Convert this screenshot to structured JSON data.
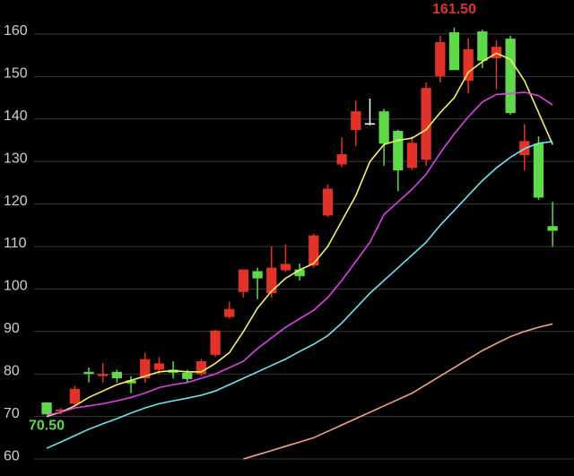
{
  "chart_data": {
    "type": "candlestick",
    "ylim": [
      56,
      168
    ],
    "yticks": [
      60,
      70,
      80,
      90,
      100,
      110,
      120,
      130,
      140,
      150,
      160
    ],
    "grid": true,
    "up_color": "#e2332b",
    "down_color": "#5fd94b",
    "flat_color": "#ffffff",
    "open": [
      73.3,
      71.2,
      73,
      80.5,
      79.5,
      80.5,
      78.5,
      79,
      81,
      81,
      80.3,
      80,
      84.5,
      93.4,
      99.3,
      104.2,
      99,
      104.4,
      104.6,
      105.5,
      117.3,
      129.3,
      137.4,
      139,
      141.8,
      137.2,
      128.5,
      130.4,
      150.1,
      160.4,
      149,
      160.6,
      154.3,
      158.9,
      131.5,
      134.2,
      114.8
    ],
    "high": [
      73.3,
      72,
      77.2,
      81.5,
      82.5,
      81,
      79.5,
      85,
      84,
      83,
      81,
      83.5,
      90.5,
      97,
      104.6,
      105,
      110,
      110.5,
      106,
      113,
      124.6,
      135.7,
      144.3,
      144.8,
      142.4,
      137.5,
      136,
      148.6,
      159.6,
      161.5,
      159,
      161,
      158.5,
      159.6,
      138.8,
      135.9,
      120.5
    ],
    "low": [
      70.5,
      70.5,
      72.5,
      78,
      78,
      78,
      75.5,
      78,
      80,
      79,
      78,
      79.5,
      84,
      93,
      98,
      97.6,
      98,
      104,
      102,
      105,
      117,
      128.7,
      133.6,
      138.5,
      129,
      123,
      128,
      129,
      148.6,
      151.5,
      146,
      152,
      147,
      141,
      127.9,
      121,
      109.9
    ],
    "close": [
      70.5,
      71.6,
      76.5,
      80,
      80,
      79,
      77.8,
      83.5,
      82.5,
      80.3,
      78.8,
      83,
      90.2,
      95.3,
      104.6,
      102.5,
      105,
      105.9,
      103,
      112.6,
      123.6,
      131.7,
      141.8,
      139,
      134.2,
      127.9,
      134.4,
      147.3,
      158.1,
      151.5,
      156.4,
      153.7,
      157,
      141.4,
      134.8,
      121.5,
      113.7
    ],
    "series": [
      {
        "color": "#f4f06a",
        "values": [
          70,
          71,
          72.5,
          74.5,
          76,
          77.5,
          78.5,
          79.5,
          80.5,
          80.8,
          80.5,
          80.5,
          82.5,
          85,
          90,
          95.5,
          99.5,
          102.5,
          104.5,
          106,
          110,
          116,
          122,
          130,
          134,
          135,
          135.5,
          137.5,
          141.5,
          145,
          151,
          153.5,
          155.5,
          154,
          149,
          141.5,
          134
        ]
      },
      {
        "color": "#e040e6",
        "values": [
          70.3,
          71,
          72,
          72.5,
          73,
          73.7,
          74.5,
          75.5,
          76.8,
          77.5,
          78,
          79,
          80,
          81.5,
          83,
          86,
          88.5,
          91,
          93,
          95,
          98,
          102,
          106.5,
          111,
          117.5,
          120.5,
          123.5,
          127,
          132,
          136.5,
          140.5,
          144,
          145.8,
          146,
          146.3,
          145.5,
          143.3
        ]
      },
      {
        "color": "#6fe3f0",
        "values": [
          62.5,
          64,
          65.5,
          67,
          68.3,
          69.5,
          70.8,
          72,
          73,
          73.7,
          74.3,
          75,
          76,
          77.5,
          79,
          80.5,
          82,
          83.5,
          85.3,
          87,
          89,
          92,
          95.5,
          99,
          102,
          105,
          108,
          111,
          115,
          118.5,
          122,
          125.5,
          128.5,
          131,
          133,
          134.3,
          134.7
        ]
      },
      {
        "color": "#f2a285",
        "values": [
          null,
          null,
          null,
          null,
          null,
          null,
          null,
          null,
          null,
          null,
          null,
          null,
          null,
          null,
          60,
          61,
          62,
          63,
          64,
          65,
          66.5,
          68,
          69.5,
          71,
          72.5,
          74,
          75.5,
          77.5,
          79.5,
          81.5,
          83.5,
          85.5,
          87.2,
          88.8,
          90,
          91,
          91.8
        ]
      }
    ],
    "max_label": {
      "value": 161.5,
      "label": "161.50",
      "color": "#e2332b"
    },
    "min_label": {
      "value": 70.5,
      "label": "70.50",
      "color": "#5fd94b"
    }
  }
}
